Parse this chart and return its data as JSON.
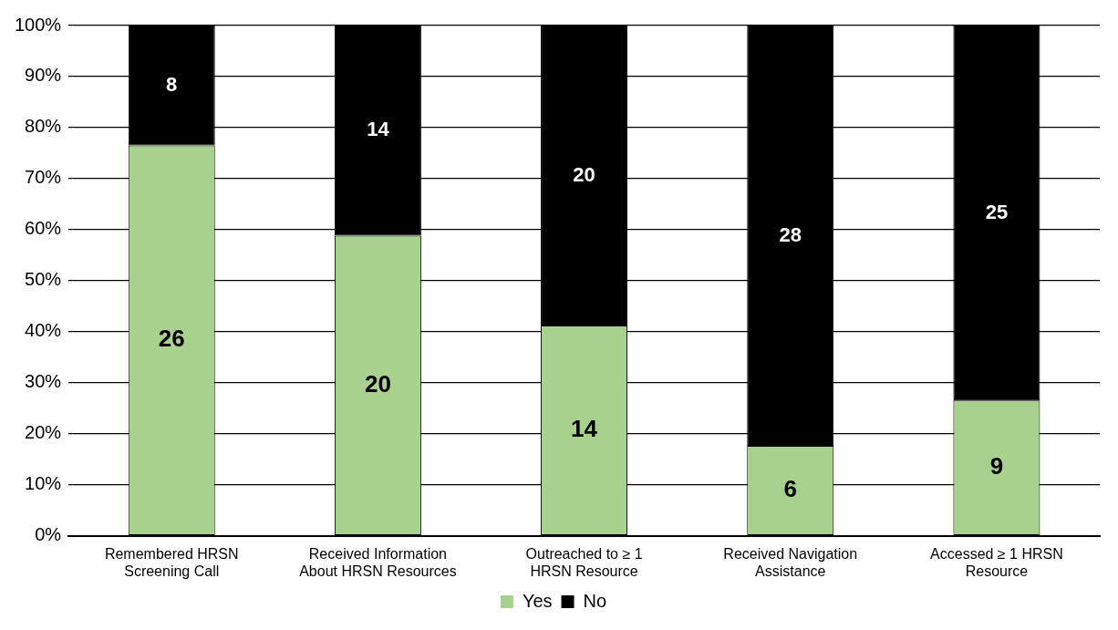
{
  "chart_data": {
    "type": "bar",
    "stacked": true,
    "categories": [
      "Remembered HRSN Screening Call",
      "Received Information About HRSN Resources",
      "Outreached to  ≥ 1 HRSN Resource",
      "Received Navigation Assistance",
      "Accessed ≥ 1 HRSN Resource"
    ],
    "series": [
      {
        "name": "Yes",
        "color": "#a9d18e",
        "values": [
          76.5,
          58.8,
          41.2,
          17.6,
          26.5
        ]
      },
      {
        "name": "No",
        "color": "#000000",
        "values": [
          23.5,
          41.2,
          58.8,
          82.4,
          73.5
        ]
      }
    ],
    "annotations": [
      "26",
      "20",
      "14",
      "6",
      "9",
      "8",
      "14",
      "20",
      "28",
      "25"
    ],
    "ylim": [
      0,
      100
    ],
    "yticks": [
      {
        "value": 0,
        "label": "0%"
      },
      {
        "value": 10,
        "label": "10%"
      },
      {
        "value": 20,
        "label": "20%"
      },
      {
        "value": 30,
        "label": "30%"
      },
      {
        "value": 40,
        "label": "40%"
      },
      {
        "value": 50,
        "label": "50%"
      },
      {
        "value": 60,
        "label": "60%"
      },
      {
        "value": 70,
        "label": "70%"
      },
      {
        "value": 80,
        "label": "80%"
      },
      {
        "value": 90,
        "label": "90%"
      },
      {
        "value": 100,
        "label": "100%"
      }
    ],
    "grid": "y",
    "legend": "bottom"
  }
}
